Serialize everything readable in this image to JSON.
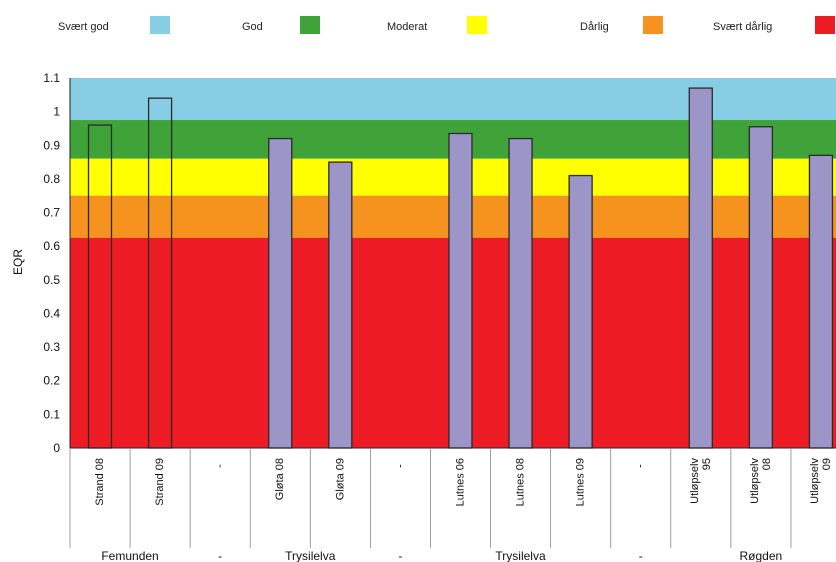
{
  "chart_data": {
    "type": "bar",
    "ylabel": "EQR",
    "ylim": [
      0,
      1.1
    ],
    "yticks": [
      "0",
      "0.1",
      "0.2",
      "0.3",
      "0.4",
      "0.5",
      "0.6",
      "0.7",
      "0.8",
      "0.9",
      "1",
      "1.1"
    ],
    "ytick_values": [
      0,
      0.1,
      0.2,
      0.3,
      0.4,
      0.5,
      0.6,
      0.7,
      0.8,
      0.9,
      1.0,
      1.1
    ],
    "grid": false,
    "legend_position": "top",
    "classes": [
      {
        "label": "Svært god",
        "color": "#87cde3",
        "from": 0.975,
        "to": 1.1
      },
      {
        "label": "God",
        "color": "#3fa33a",
        "from": 0.86,
        "to": 0.975
      },
      {
        "label": "Moderat",
        "color": "#ffff00",
        "from": 0.75,
        "to": 0.86
      },
      {
        "label": "Dårlig",
        "color": "#f6921e",
        "from": 0.625,
        "to": 0.75
      },
      {
        "label": "Svært dårlig",
        "color": "#ed1c24",
        "from": 0,
        "to": 0.625
      }
    ],
    "categories": [
      {
        "label": "Strand 08",
        "value": 0.96,
        "style": "outline"
      },
      {
        "label": "Strand 09",
        "value": 1.04,
        "style": "outline"
      },
      {
        "label": "-",
        "value": null
      },
      {
        "label": "Gløta 08",
        "value": 0.92,
        "style": "filled"
      },
      {
        "label": "Gløta 09",
        "value": 0.85,
        "style": "filled"
      },
      {
        "label": "-",
        "value": null
      },
      {
        "label": "Lutnes 06",
        "value": 0.935,
        "style": "filled"
      },
      {
        "label": "Lutnes 08",
        "value": 0.92,
        "style": "filled"
      },
      {
        "label": "Lutnes 09",
        "value": 0.81,
        "style": "filled"
      },
      {
        "label": "-",
        "value": null
      },
      {
        "label": "Utløpselv 95",
        "value": 1.07,
        "style": "filled"
      },
      {
        "label": "Utløpselv 08",
        "value": 0.955,
        "style": "filled"
      },
      {
        "label": "Utløpselv 09",
        "value": 0.87,
        "style": "filled"
      }
    ],
    "groups": [
      {
        "label": "Femunden",
        "start": 0,
        "end": 1
      },
      {
        "label": "-",
        "start": 2,
        "end": 2
      },
      {
        "label": "Trysilelva",
        "start": 3,
        "end": 4
      },
      {
        "label": "-",
        "start": 5,
        "end": 5
      },
      {
        "label": "Trysilelva",
        "start": 6,
        "end": 8
      },
      {
        "label": "-",
        "start": 9,
        "end": 9
      },
      {
        "label": "Røgden",
        "start": 10,
        "end": 12
      }
    ],
    "bar_fill": "#9b95c8",
    "bar_stroke": "#2a2a2a"
  }
}
